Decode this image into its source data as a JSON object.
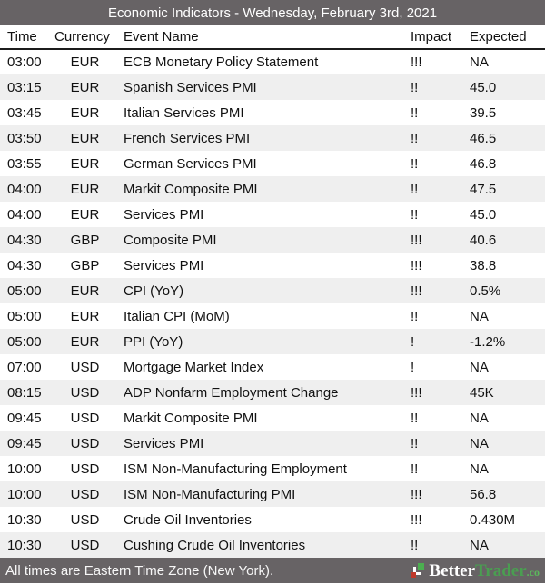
{
  "title": "Economic Indicators - Wednesday, February 3rd, 2021",
  "table": {
    "columns": [
      "Time",
      "Currency",
      "Event Name",
      "Impact",
      "Expected"
    ],
    "rows": [
      {
        "time": "03:00",
        "currency": "EUR",
        "event": "ECB Monetary Policy Statement",
        "impact": "!!!",
        "expected": "NA"
      },
      {
        "time": "03:15",
        "currency": "EUR",
        "event": "Spanish Services PMI",
        "impact": "!!",
        "expected": "45.0"
      },
      {
        "time": "03:45",
        "currency": "EUR",
        "event": "Italian Services PMI",
        "impact": "!!",
        "expected": "39.5"
      },
      {
        "time": "03:50",
        "currency": "EUR",
        "event": "French Services PMI",
        "impact": "!!",
        "expected": "46.5"
      },
      {
        "time": "03:55",
        "currency": "EUR",
        "event": "German Services PMI",
        "impact": "!!",
        "expected": "46.8"
      },
      {
        "time": "04:00",
        "currency": "EUR",
        "event": "Markit Composite PMI",
        "impact": "!!",
        "expected": "47.5"
      },
      {
        "time": "04:00",
        "currency": "EUR",
        "event": "Services PMI",
        "impact": "!!",
        "expected": "45.0"
      },
      {
        "time": "04:30",
        "currency": "GBP",
        "event": "Composite PMI",
        "impact": "!!!",
        "expected": "40.6"
      },
      {
        "time": "04:30",
        "currency": "GBP",
        "event": "Services PMI",
        "impact": "!!!",
        "expected": "38.8"
      },
      {
        "time": "05:00",
        "currency": "EUR",
        "event": "CPI (YoY)",
        "impact": "!!!",
        "expected": "0.5%"
      },
      {
        "time": "05:00",
        "currency": "EUR",
        "event": "Italian CPI (MoM)",
        "impact": "!!",
        "expected": "NA"
      },
      {
        "time": "05:00",
        "currency": "EUR",
        "event": "PPI (YoY)",
        "impact": "!",
        "expected": "-1.2%"
      },
      {
        "time": "07:00",
        "currency": "USD",
        "event": "Mortgage Market Index",
        "impact": "!",
        "expected": "NA"
      },
      {
        "time": "08:15",
        "currency": "USD",
        "event": "ADP Nonfarm Employment Change",
        "impact": "!!!",
        "expected": "45K"
      },
      {
        "time": "09:45",
        "currency": "USD",
        "event": "Markit Composite PMI",
        "impact": "!!",
        "expected": "NA"
      },
      {
        "time": "09:45",
        "currency": "USD",
        "event": "Services PMI",
        "impact": "!!",
        "expected": "NA"
      },
      {
        "time": "10:00",
        "currency": "USD",
        "event": "ISM Non-Manufacturing Employment",
        "impact": "!!",
        "expected": "NA"
      },
      {
        "time": "10:00",
        "currency": "USD",
        "event": "ISM Non-Manufacturing PMI",
        "impact": "!!!",
        "expected": "56.8"
      },
      {
        "time": "10:30",
        "currency": "USD",
        "event": "Crude Oil Inventories",
        "impact": "!!!",
        "expected": "0.430M"
      },
      {
        "time": "10:30",
        "currency": "USD",
        "event": "Cushing Crude Oil Inventories",
        "impact": "!!",
        "expected": "NA"
      }
    ]
  },
  "footer": {
    "note": "All times are Eastern Time Zone (New York).",
    "logo": {
      "part1": "Better",
      "part2": "Trader",
      "suffix": ".co"
    }
  },
  "colors": {
    "bar_background": "#676365",
    "row_alt_background": "#efefef",
    "header_underline": "#1c1c1c",
    "logo_green": "#4a9e51",
    "logo_icon_green": "#4caf50",
    "logo_icon_red": "#c0392b"
  }
}
